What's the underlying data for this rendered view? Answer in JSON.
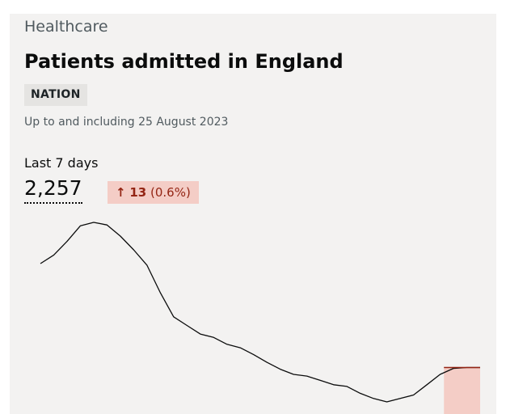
{
  "card": {
    "section": "Healthcare",
    "title": "Patients admitted in England",
    "tag": "NATION",
    "date_note": "Up to and including 25 August 2023",
    "metric_label": "Last 7 days",
    "metric_value": "2,257",
    "change": {
      "arrow": "↑",
      "amount": "13",
      "percent": "(0.6%)",
      "direction": "up"
    }
  },
  "colors": {
    "card_bg": "#f3f2f1",
    "line": "#0b0c0c",
    "highlight_fill": "#f4cdc6",
    "highlight_line": "#942514",
    "increase_text": "#942514"
  },
  "chart_data": {
    "type": "line",
    "title": "",
    "xlabel": "",
    "ylabel": "",
    "grid": false,
    "legend": "none",
    "highlight_last_days": 7,
    "series": [
      {
        "values": [
          2480,
          2530,
          2610,
          2700,
          2720,
          2705,
          2640,
          2560,
          2470,
          2310,
          2170,
          2120,
          2070,
          2050,
          2010,
          1990,
          1950,
          1905,
          1865,
          1835,
          1825,
          1800,
          1775,
          1765,
          1725,
          1695,
          1675,
          1695,
          1715,
          1775,
          1835,
          1870,
          1875,
          1875
        ]
      }
    ]
  }
}
